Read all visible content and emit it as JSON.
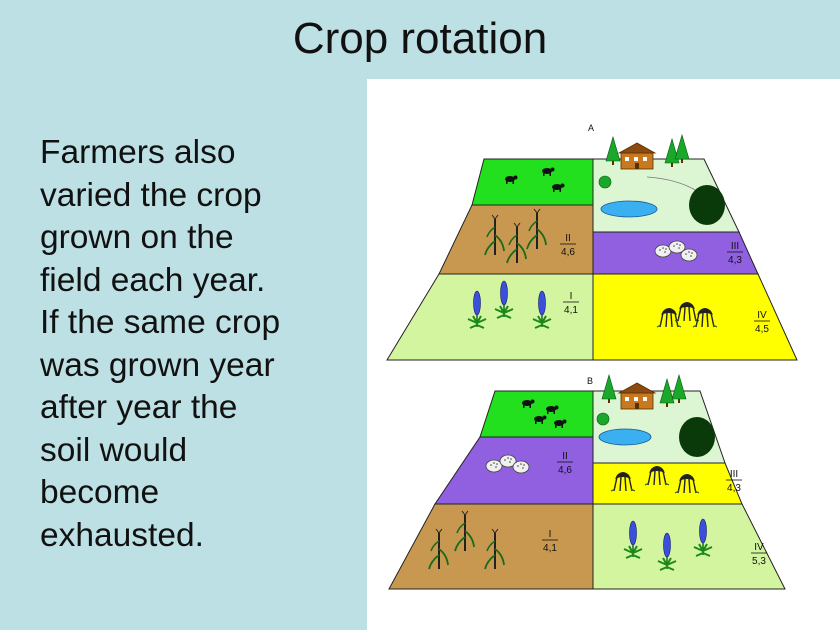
{
  "title": "Crop rotation",
  "body_lines": [
    "Farmers also",
    "varied the crop",
    "grown on the",
    "field each year.",
    "If the same crop",
    "was grown year",
    "after year the",
    "soil would",
    "become",
    "exhausted."
  ],
  "diagram": {
    "fields": [
      {
        "label": "A",
        "plots": [
          {
            "roman": "II",
            "values": "4,6"
          },
          {
            "roman": "III",
            "values": "4,3"
          },
          {
            "roman": "I",
            "values": "4,1"
          },
          {
            "roman": "IV",
            "values": "4,5"
          }
        ]
      },
      {
        "label": "B",
        "plots": [
          {
            "roman": "II",
            "values": "4,6"
          },
          {
            "roman": "III",
            "values": "4,3"
          },
          {
            "roman": "I",
            "values": "4,1"
          },
          {
            "roman": "IV",
            "values": "5,3"
          }
        ]
      }
    ],
    "colors": {
      "pasture": "#22e01e",
      "farmyard": "#dcf5d2",
      "brown": "#c89850",
      "purple": "#9060e0",
      "lightgreen": "#d4f5a0",
      "yellow": "#ffff00"
    }
  }
}
